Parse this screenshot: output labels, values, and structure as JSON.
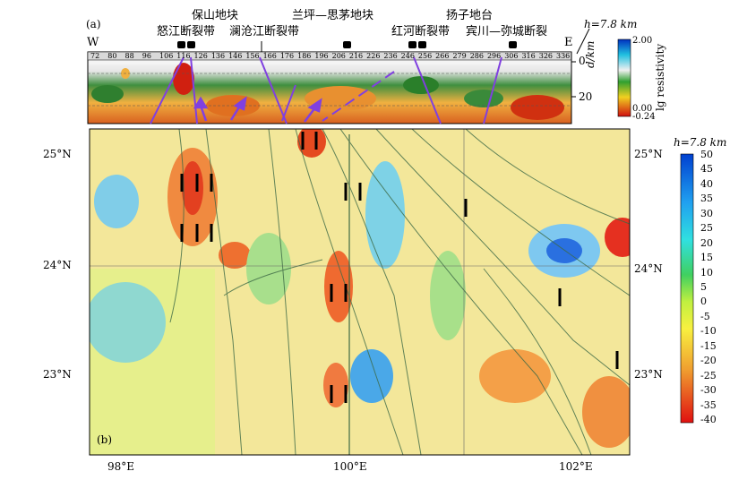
{
  "panel_a": {
    "label": "(a)",
    "west": "W",
    "east": "E",
    "blocks": [
      "保山地块",
      "兰坪—思茅地块",
      "扬子地台"
    ],
    "faults": [
      "怒江断裂带",
      "澜沧江断裂带",
      "红河断裂带",
      "宾川—弥城断裂"
    ],
    "ticks": [
      "72",
      "80",
      "88",
      "96",
      "106",
      "116",
      "126",
      "136",
      "146",
      "156",
      "166",
      "176",
      "186",
      "196",
      "206",
      "216",
      "226",
      "236",
      "246",
      "256",
      "266",
      "279",
      "286",
      "296",
      "306",
      "316",
      "326",
      "336"
    ],
    "depth_label": "d/km",
    "depth_ticks": [
      "0",
      "20"
    ],
    "h_label": "h=7.8 km",
    "colorbar": {
      "title": "lg resistivity",
      "max": "2.00",
      "mid": "0.00",
      "min": "-0.24"
    }
  },
  "panel_b": {
    "label": "(b)",
    "lat_left": [
      "25°N",
      "24°N",
      "23°N"
    ],
    "lat_right": [
      "25°N",
      "24°N",
      "23°N"
    ],
    "lon": [
      "98°E",
      "100°E",
      "102°E"
    ],
    "colorbar": {
      "title": "h=7.8 km",
      "ticks": [
        "50",
        "45",
        "40",
        "35",
        "30",
        "25",
        "20",
        "15",
        "10",
        "5",
        "0",
        "-5",
        "-10",
        "-15",
        "-20",
        "-25",
        "-30",
        "-35",
        "-40"
      ]
    }
  }
}
